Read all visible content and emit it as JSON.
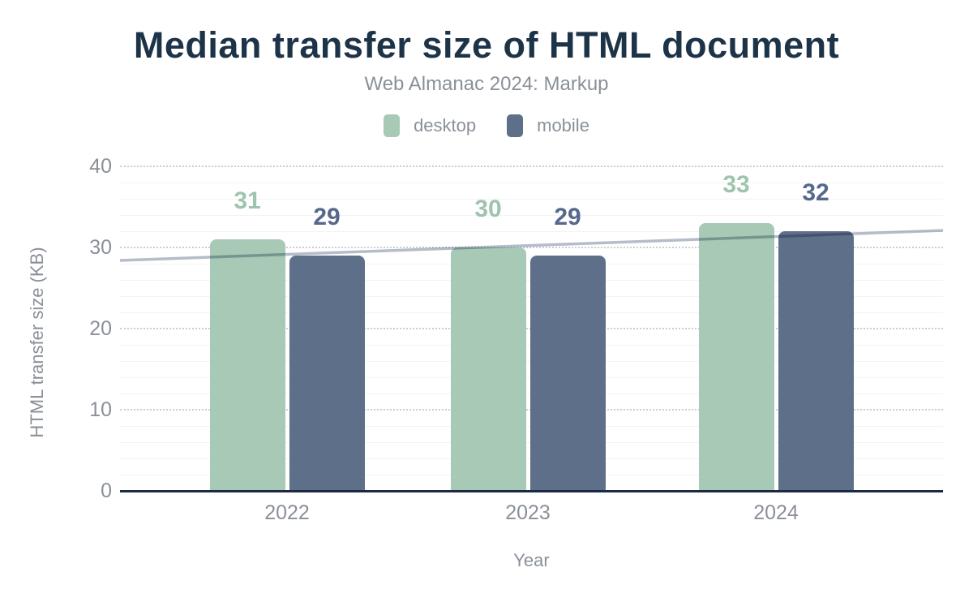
{
  "title": "Median transfer size of HTML document",
  "subtitle": "Web Almanac 2024: Markup",
  "legend": {
    "items": [
      {
        "label": "desktop",
        "color": "#a7c9b5"
      },
      {
        "label": "mobile",
        "color": "#5e7089"
      }
    ]
  },
  "chart_data": {
    "type": "bar",
    "title": "Median transfer size of HTML document",
    "subtitle": "Web Almanac 2024: Markup",
    "categories": [
      "2022",
      "2023",
      "2024"
    ],
    "series": [
      {
        "name": "desktop",
        "values": [
          31,
          30,
          33
        ],
        "color": "#a7c9b5",
        "label_color": "#9fc4ae"
      },
      {
        "name": "mobile",
        "values": [
          29,
          29,
          32
        ],
        "color": "#5e7089",
        "label_color": "#56698c"
      }
    ],
    "xlabel": "Year",
    "ylabel": "HTML transfer size (KB)",
    "ylim": [
      0,
      40
    ],
    "yticks": [
      0,
      10,
      20,
      30,
      40
    ],
    "grid": {
      "major_interval": 10,
      "major_style": "dotted",
      "minor_interval": 2,
      "minor_style": "solid"
    },
    "legend_position": "top-center",
    "trendline": {
      "start_value": 28.4,
      "end_value": 32.1,
      "color": "#b5bdc9"
    }
  },
  "colors": {
    "background": "#ffffff",
    "title": "#1d3348",
    "subtitle": "#8a9099",
    "axis_text": "#8a9099",
    "baseline": "#1b2a42",
    "grid_major": "#c9cdd4",
    "grid_minor": "#f2f3f6",
    "trendline": "#b5bdc9"
  }
}
